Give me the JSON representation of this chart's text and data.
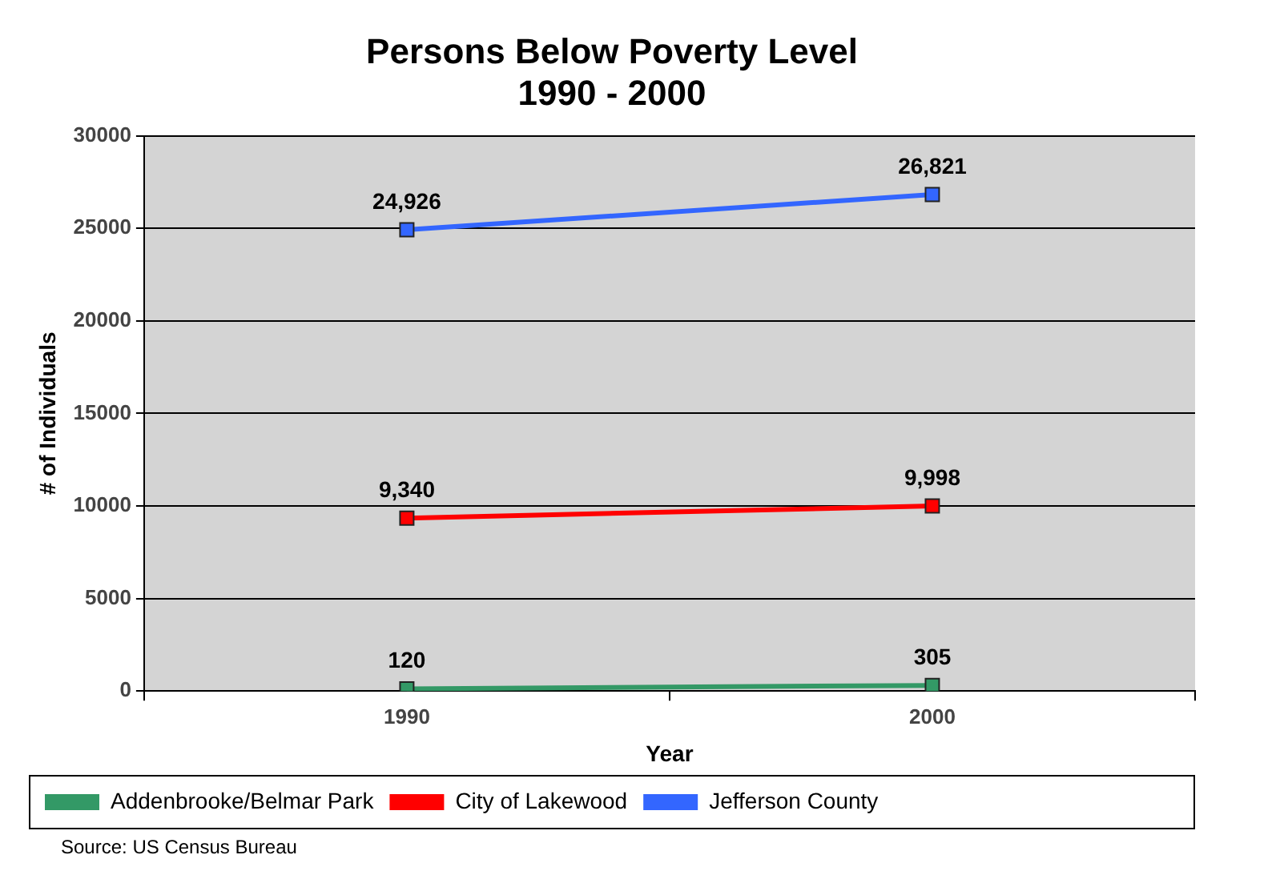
{
  "chart_data": {
    "type": "line",
    "title": "Persons Below Poverty Level\n1990 - 2000",
    "xlabel": "Year",
    "ylabel": "# of Individuals",
    "categories": [
      "1990",
      "2000"
    ],
    "series": [
      {
        "name": "Addenbrooke/Belmar Park",
        "color": "#339966",
        "values": [
          120,
          305
        ],
        "value_labels": [
          "120",
          "305"
        ]
      },
      {
        "name": "City of Lakewood",
        "color": "#ff0000",
        "values": [
          9340,
          9998
        ],
        "value_labels": [
          "9,340",
          "9,998"
        ]
      },
      {
        "name": "Jefferson County",
        "color": "#3366ff",
        "values": [
          24926,
          26821
        ],
        "value_labels": [
          "24,926",
          "26,821"
        ]
      }
    ],
    "ylim": [
      0,
      30000
    ],
    "yticks": [
      0,
      5000,
      10000,
      15000,
      20000,
      25000,
      30000
    ],
    "grid": "y",
    "legend": "bottom left",
    "marker": "square",
    "line_style": "solid",
    "annotations": [
      "Source: US Census Bureau"
    ]
  }
}
